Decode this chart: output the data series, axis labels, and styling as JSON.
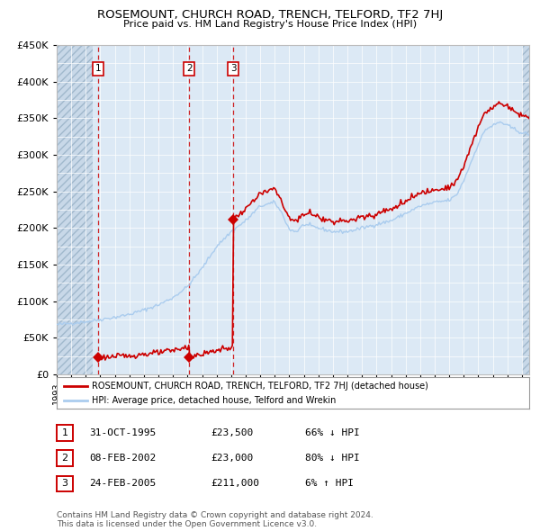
{
  "title": "ROSEMOUNT, CHURCH ROAD, TRENCH, TELFORD, TF2 7HJ",
  "subtitle": "Price paid vs. HM Land Registry's House Price Index (HPI)",
  "red_label": "ROSEMOUNT, CHURCH ROAD, TRENCH, TELFORD, TF2 7HJ (detached house)",
  "blue_label": "HPI: Average price, detached house, Telford and Wrekin",
  "transactions": [
    {
      "num": 1,
      "date": "31-OCT-1995",
      "price": 23500,
      "pct": "66%",
      "dir": "↓",
      "x_year": 1995.83
    },
    {
      "num": 2,
      "date": "08-FEB-2002",
      "price": 23000,
      "pct": "80%",
      "dir": "↓",
      "x_year": 2002.11
    },
    {
      "num": 3,
      "date": "24-FEB-2005",
      "price": 211000,
      "pct": "6%",
      "dir": "↑",
      "x_year": 2005.14
    }
  ],
  "ylim": [
    0,
    450000
  ],
  "yticks": [
    0,
    50000,
    100000,
    150000,
    200000,
    250000,
    300000,
    350000,
    400000,
    450000
  ],
  "ytick_labels": [
    "£0",
    "£50K",
    "£100K",
    "£150K",
    "£200K",
    "£250K",
    "£300K",
    "£350K",
    "£400K",
    "£450K"
  ],
  "xlim_start": 1993.0,
  "xlim_end": 2025.5,
  "plot_bg_color": "#dce9f5",
  "footer": "Contains HM Land Registry data © Crown copyright and database right 2024.\nThis data is licensed under the Open Government Licence v3.0.",
  "red_color": "#cc0000",
  "blue_color": "#aaccee",
  "hatch_bg": "#c8d8e8",
  "grid_color": "#ffffff",
  "hatch_end": 1995.5,
  "hatch_start2": 2025.0
}
